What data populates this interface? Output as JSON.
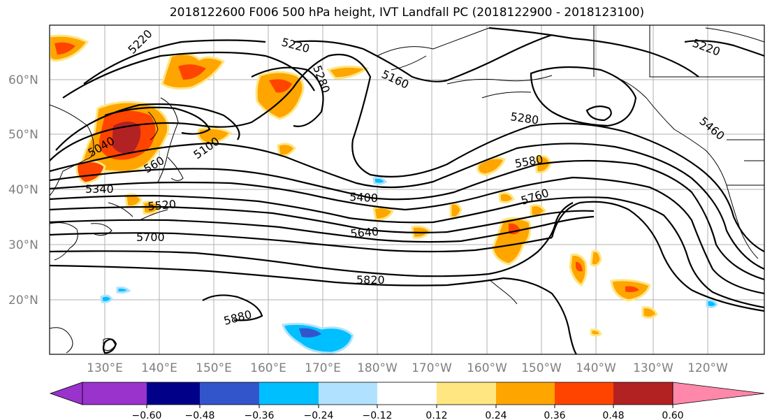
{
  "title": "2018122600 F006 500 hPa height, IVT Landfall PC (2018122900 - 2018123100)",
  "lat_labels": [
    "60°N",
    "50°N",
    "40°N",
    "30°N",
    "20°N"
  ],
  "lon_labels": [
    "130°E",
    "140°E",
    "150°E",
    "160°E",
    "170°E",
    "180°W",
    "170°W",
    "160°W",
    "150°W",
    "140°W",
    "130°W",
    "120°W"
  ],
  "contour_labels": [
    "5220",
    "5220",
    "5280",
    "5160",
    "5220",
    "5280",
    "5460",
    "5040",
    "5100",
    "5580",
    "5400",
    "5760",
    "5340",
    "5520",
    "5640",
    "5700",
    "5820",
    "5880",
    "560"
  ],
  "colorbar": {
    "ticks": [
      "−0.60",
      "−0.48",
      "−0.36",
      "−0.24",
      "−0.12",
      "0.12",
      "0.24",
      "0.36",
      "0.48",
      "0.60"
    ],
    "colors": [
      "#9933cc",
      "#000088",
      "#3355cc",
      "#00bfff",
      "#b0e2ff",
      "#ffffff",
      "#ffe680",
      "#ffa500",
      "#ff4400",
      "#b22222",
      "#ff88aa"
    ]
  }
}
